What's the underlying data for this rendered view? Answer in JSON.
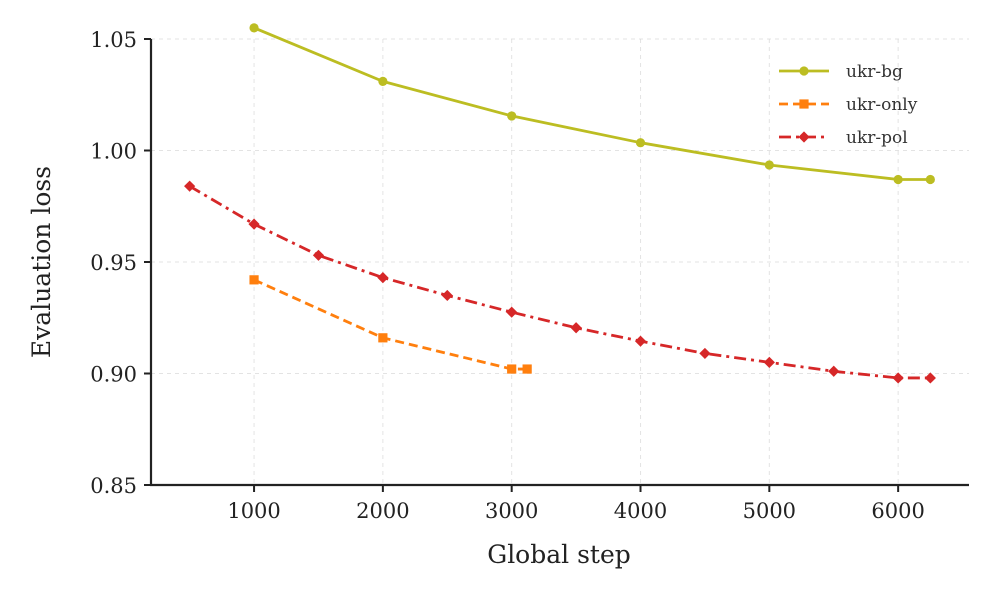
{
  "chart_data": {
    "type": "line",
    "xlabel": "Global step",
    "ylabel": "Evaluation loss",
    "xlim": [
      200,
      6550
    ],
    "ylim": [
      0.85,
      1.05
    ],
    "xticks": [
      1000,
      2000,
      3000,
      4000,
      5000,
      6000
    ],
    "yticks": [
      0.85,
      0.9,
      0.95,
      1.0,
      1.05
    ],
    "xtick_labels": [
      "1000",
      "2000",
      "3000",
      "4000",
      "5000",
      "6000"
    ],
    "ytick_labels": [
      "0.85",
      "0.90",
      "0.95",
      "1.00",
      "1.05"
    ],
    "grid": true,
    "legend_position": "top-right",
    "series": [
      {
        "name": "ukr-bg",
        "color": "#bcbd22",
        "line_style": "solid",
        "marker": "circle",
        "x": [
          1000,
          2000,
          3000,
          4000,
          5000,
          6000,
          6250
        ],
        "y": [
          1.055,
          1.031,
          1.0155,
          1.0035,
          0.9935,
          0.987,
          0.987
        ]
      },
      {
        "name": "ukr-only",
        "color": "#ff7f0e",
        "line_style": "dashed",
        "marker": "square",
        "x": [
          1000,
          2000,
          3000,
          3120
        ],
        "y": [
          0.942,
          0.916,
          0.902,
          0.902
        ]
      },
      {
        "name": "ukr-pol",
        "color": "#d62728",
        "line_style": "dashdot",
        "marker": "diamond",
        "x": [
          500,
          1000,
          1500,
          2000,
          2500,
          3000,
          3500,
          4000,
          4500,
          5000,
          5500,
          6000,
          6250
        ],
        "y": [
          0.984,
          0.967,
          0.953,
          0.943,
          0.935,
          0.9275,
          0.9205,
          0.9145,
          0.909,
          0.905,
          0.901,
          0.898,
          0.898
        ]
      }
    ]
  }
}
